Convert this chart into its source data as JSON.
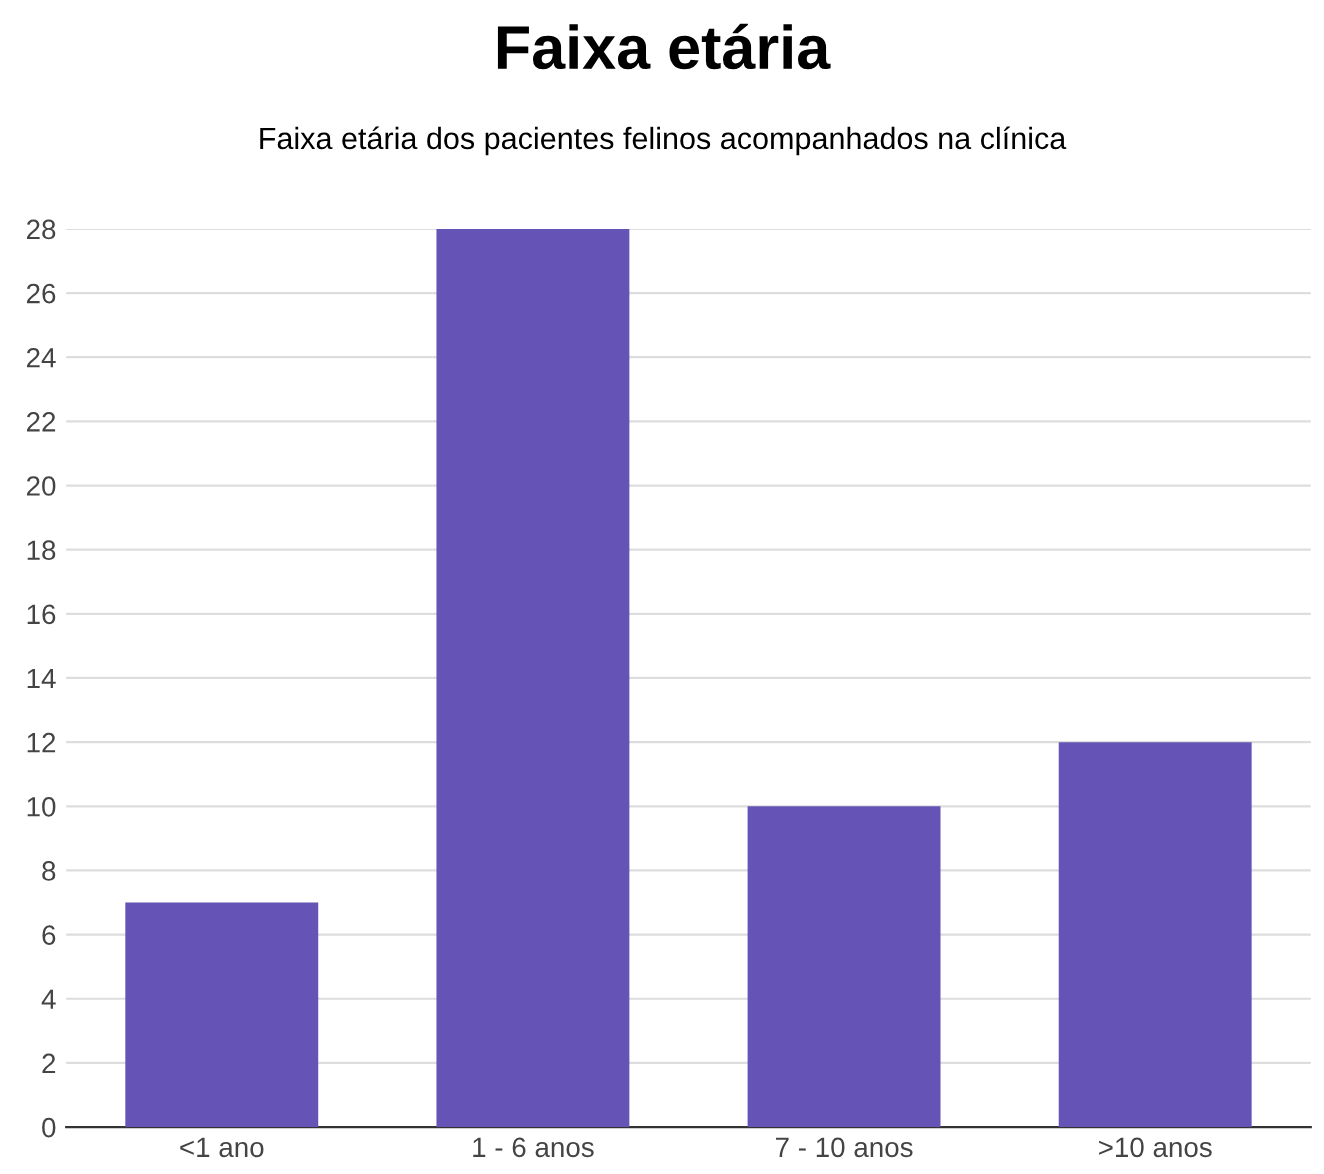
{
  "chart_data": {
    "type": "bar",
    "title": "Faixa etária",
    "subtitle": "Faixa etária dos pacientes felinos acompanhados na clínica",
    "categories": [
      "<1 ano",
      "1 - 6 anos",
      "7 - 10 anos",
      ">10 anos"
    ],
    "values": [
      7,
      28,
      10,
      12
    ],
    "color": "#6553b5",
    "ylim": [
      0,
      28
    ],
    "yticks": [
      0,
      2,
      4,
      6,
      8,
      10,
      12,
      14,
      16,
      18,
      20,
      22,
      24,
      26,
      28
    ],
    "grid": "y"
  }
}
